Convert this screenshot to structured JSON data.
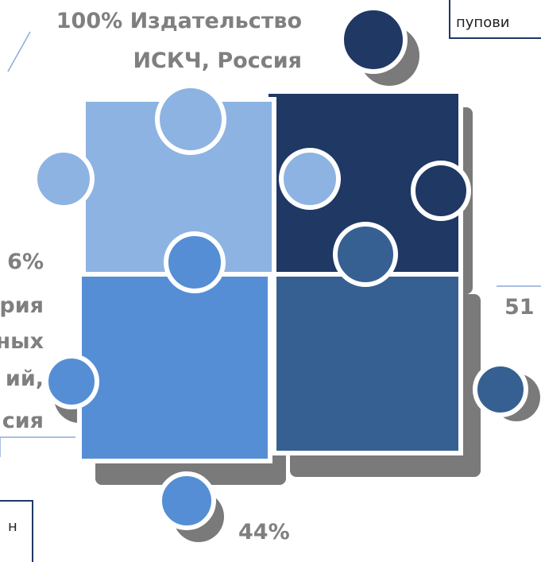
{
  "labels": {
    "top_left": [
      "100% Издательство",
      "ИСКЧ, Россия"
    ],
    "left": [
      "6%",
      "рия",
      "ных",
      "ий,",
      "сия"
    ],
    "right": [
      "51"
    ],
    "bottom": [
      "44%"
    ],
    "top_right_box": [
      "пупови"
    ],
    "bottom_left_box": [
      "н"
    ]
  }
}
